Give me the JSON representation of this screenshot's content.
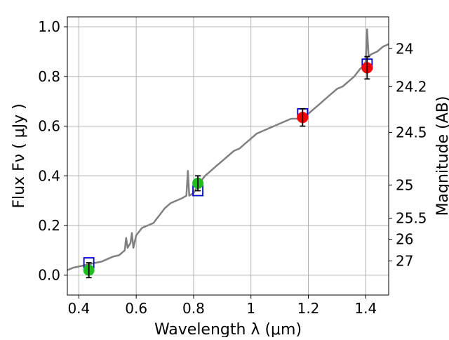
{
  "chart_data": {
    "type": "scatter",
    "title": "",
    "xlabel": "Wavelength  λ (μm)",
    "ylabel": "Flux  Fν ( μJy )",
    "y2label": "Magnitude (AB)",
    "xlim": [
      0.36,
      1.48
    ],
    "ylim": [
      -0.08,
      1.04
    ],
    "grid": true,
    "xticks": [
      {
        "value": 0.4,
        "label": "0.4"
      },
      {
        "value": 0.6,
        "label": "0.6"
      },
      {
        "value": 0.8,
        "label": "0.8"
      },
      {
        "value": 1.0,
        "label": "1"
      },
      {
        "value": 1.2,
        "label": "1.2"
      },
      {
        "value": 1.4,
        "label": "1.4"
      }
    ],
    "yticks": [
      {
        "value": 0.0,
        "label": "0.0"
      },
      {
        "value": 0.2,
        "label": "0.2"
      },
      {
        "value": 0.4,
        "label": "0.4"
      },
      {
        "value": 0.6,
        "label": "0.6"
      },
      {
        "value": 0.8,
        "label": "0.8"
      },
      {
        "value": 1.0,
        "label": "1.0"
      }
    ],
    "y2ticks": [
      {
        "flux": 0.0575,
        "label": "27"
      },
      {
        "flux": 0.1445,
        "label": "26"
      },
      {
        "flux": 0.229,
        "label": "25.5"
      },
      {
        "flux": 0.363,
        "label": "25"
      },
      {
        "flux": 0.575,
        "label": "24.5"
      },
      {
        "flux": 0.759,
        "label": "24.2"
      },
      {
        "flux": 0.912,
        "label": "24"
      }
    ],
    "series": [
      {
        "kind": "line",
        "color": "#808080",
        "x": [
          0.36,
          0.38,
          0.4,
          0.42,
          0.44,
          0.46,
          0.48,
          0.5,
          0.52,
          0.54,
          0.56,
          0.565,
          0.57,
          0.58,
          0.585,
          0.59,
          0.6,
          0.62,
          0.64,
          0.66,
          0.68,
          0.7,
          0.72,
          0.74,
          0.76,
          0.775,
          0.78,
          0.785,
          0.8,
          0.82,
          0.84,
          0.86,
          0.88,
          0.9,
          0.92,
          0.94,
          0.96,
          0.98,
          1.0,
          1.02,
          1.04,
          1.06,
          1.08,
          1.1,
          1.12,
          1.14,
          1.16,
          1.18,
          1.2,
          1.22,
          1.24,
          1.26,
          1.28,
          1.3,
          1.32,
          1.34,
          1.36,
          1.38,
          1.39,
          1.4,
          1.405,
          1.41,
          1.42,
          1.44,
          1.46,
          1.48
        ],
        "y": [
          0.02,
          0.03,
          0.035,
          0.04,
          0.045,
          0.05,
          0.055,
          0.065,
          0.075,
          0.08,
          0.1,
          0.15,
          0.11,
          0.13,
          0.17,
          0.11,
          0.16,
          0.19,
          0.2,
          0.21,
          0.24,
          0.27,
          0.29,
          0.3,
          0.31,
          0.32,
          0.42,
          0.32,
          0.33,
          0.37,
          0.4,
          0.42,
          0.44,
          0.46,
          0.48,
          0.5,
          0.51,
          0.53,
          0.55,
          0.57,
          0.58,
          0.59,
          0.6,
          0.61,
          0.62,
          0.63,
          0.63,
          0.64,
          0.65,
          0.67,
          0.69,
          0.71,
          0.73,
          0.75,
          0.76,
          0.78,
          0.8,
          0.83,
          0.84,
          0.86,
          0.99,
          0.88,
          0.89,
          0.9,
          0.92,
          0.93
        ]
      },
      {
        "kind": "model-squares",
        "color": "#0000cc",
        "x": [
          0.435,
          0.815,
          1.18,
          1.405
        ],
        "y": [
          0.05,
          0.34,
          0.65,
          0.85
        ]
      },
      {
        "kind": "observed",
        "x": [
          0.435,
          0.815,
          1.18,
          1.405
        ],
        "y": [
          0.02,
          0.37,
          0.635,
          0.835
        ],
        "yerr": [
          0.03,
          0.03,
          0.035,
          0.045
        ],
        "colors": [
          "#22bb22",
          "#22bb22",
          "#ff0000",
          "#ff0000"
        ]
      }
    ]
  }
}
